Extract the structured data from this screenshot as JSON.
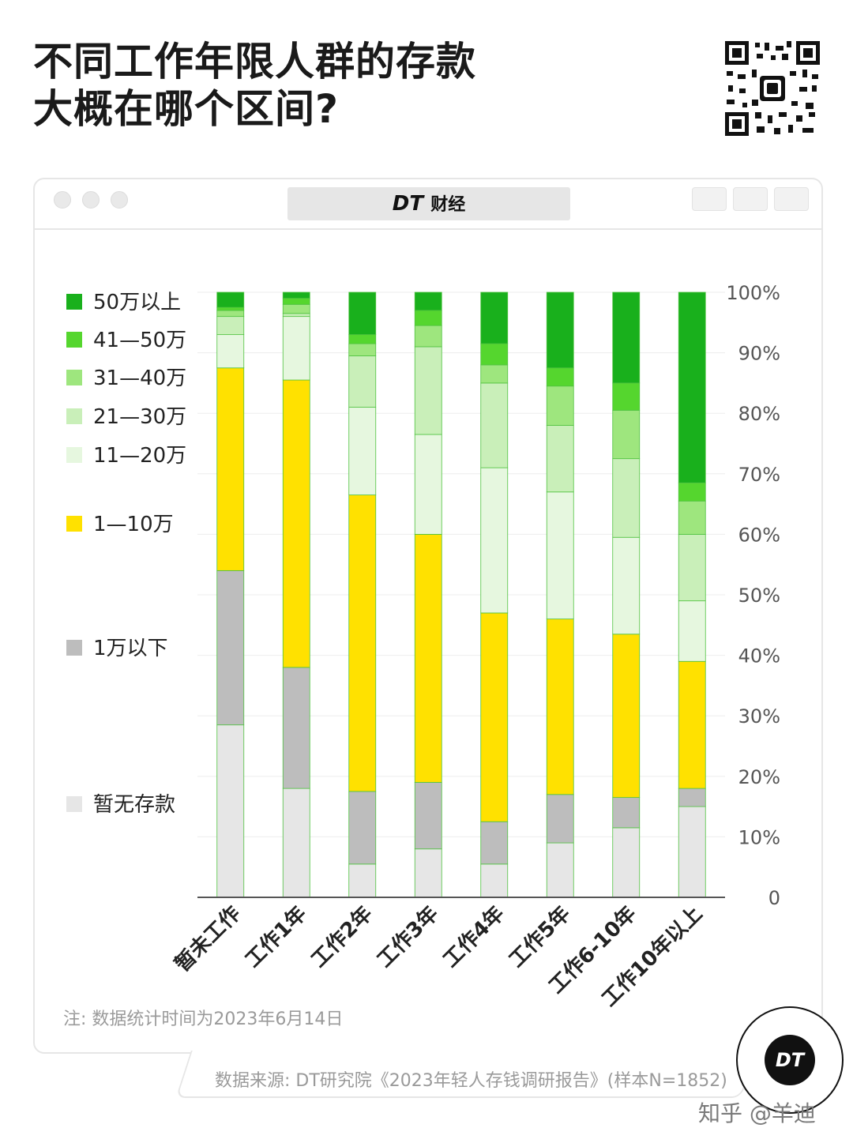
{
  "title_lines": [
    "不同工作年限人群的存款",
    "大概在哪个区间?"
  ],
  "brand": {
    "logo": "DT",
    "name": "财经"
  },
  "legend": [
    {
      "label": "50万以上",
      "color": "#19b01c"
    },
    {
      "label": "41—50万",
      "color": "#55d62e"
    },
    {
      "label": "31—40万",
      "color": "#9ee67e"
    },
    {
      "label": "21—30万",
      "color": "#c9efb9"
    },
    {
      "label": "11—20万",
      "color": "#e6f7df"
    },
    {
      "label": "1—10万",
      "color": "#ffe100"
    },
    {
      "label": "1万以下",
      "color": "#bdbdbd"
    },
    {
      "label": "暂无存款",
      "color": "#e6e6e6"
    }
  ],
  "chart_data": {
    "type": "bar",
    "stacked": true,
    "categories": [
      "暂未工作",
      "工作1年",
      "工作2年",
      "工作3年",
      "工作4年",
      "工作5年",
      "工作6-10年",
      "工作10年以上"
    ],
    "series": [
      {
        "name": "暂无存款",
        "color": "#e6e6e6",
        "values": [
          28.5,
          18,
          5.5,
          8,
          5.5,
          9,
          11.5,
          15
        ]
      },
      {
        "name": "1万以下",
        "color": "#bdbdbd",
        "values": [
          25.5,
          20,
          12,
          11,
          7,
          8,
          5,
          3
        ]
      },
      {
        "name": "1—10万",
        "color": "#ffe100",
        "values": [
          33.5,
          47.5,
          49,
          41,
          34.5,
          29,
          27,
          21
        ]
      },
      {
        "name": "11—20万",
        "color": "#e6f7df",
        "values": [
          5.5,
          10.5,
          14.5,
          16.5,
          24,
          21,
          16,
          10
        ]
      },
      {
        "name": "21—30万",
        "color": "#c9efb9",
        "values": [
          3,
          0.5,
          8.5,
          14.5,
          14,
          11,
          13,
          11
        ]
      },
      {
        "name": "31—40万",
        "color": "#9ee67e",
        "values": [
          1,
          1.5,
          2,
          3.5,
          3,
          6.5,
          8,
          5.5
        ]
      },
      {
        "name": "41—50万",
        "color": "#55d62e",
        "values": [
          0.5,
          1,
          1.5,
          2.5,
          3.5,
          3,
          4.5,
          3
        ]
      },
      {
        "name": "50万以上",
        "color": "#19b01c",
        "values": [
          2.5,
          1,
          7,
          3,
          8.5,
          12.5,
          15,
          31.5
        ]
      }
    ],
    "y_ticks": [
      "0",
      "10%",
      "20%",
      "30%",
      "40%",
      "50%",
      "60%",
      "70%",
      "80%",
      "90%",
      "100%"
    ],
    "ylim": [
      0,
      100
    ]
  },
  "note": "注: 数据统计时间为2023年6月14日",
  "source": "数据来源: DT研究院《2023年轻人存钱调研报告》(样本N=1852)",
  "badge": "DT",
  "watermark": "知乎 @羊迪"
}
